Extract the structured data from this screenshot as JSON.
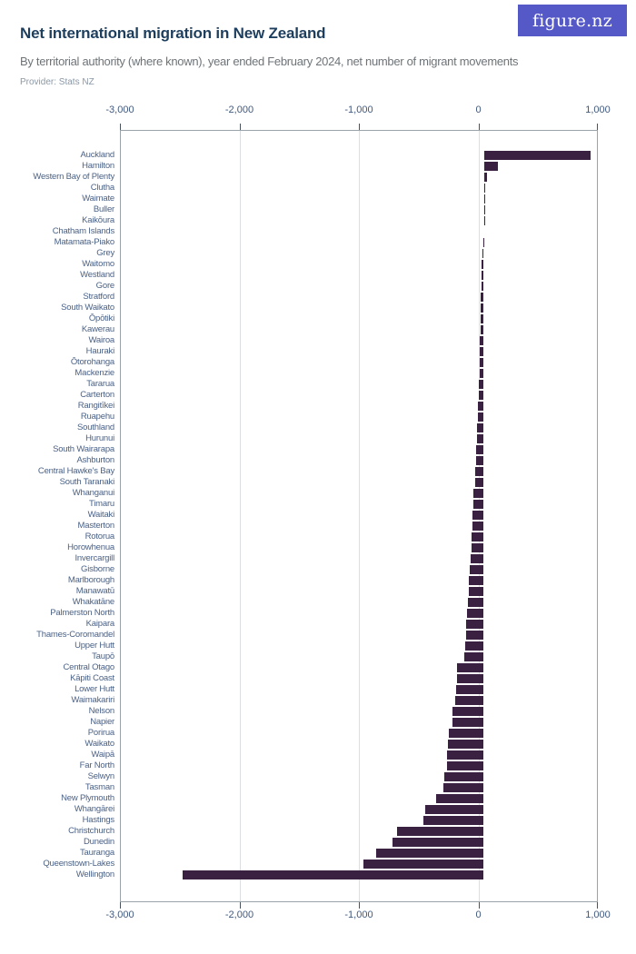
{
  "header": {
    "title": "Net international migration in New Zealand",
    "subtitle": "By territorial authority (where known), year ended February 2024,  net number of migrant movements",
    "provider": "Provider: Stats NZ",
    "logo_text": "figure.nz"
  },
  "colors": {
    "bar": "#3a2142",
    "logo_background": "#5559c8",
    "title_text": "#1e3e5e",
    "subtitle_text": "#6e7478",
    "category_label_text": "#4a6186",
    "axis_label_text": "#41597d",
    "gridline": "#dcdfe2",
    "frame": "#9aa2aa"
  },
  "chart_data": {
    "type": "bar",
    "orientation": "horizontal",
    "title": "Net international migration in New Zealand",
    "subtitle": "By territorial authority (where known), year ended February 2024, net number of migrant movements",
    "xlabel": "",
    "ylabel": "",
    "xlim": [
      -3000,
      1000
    ],
    "x_ticks": [
      -3000,
      -2000,
      -1000,
      0,
      1000
    ],
    "x_tick_labels": [
      "-3,000",
      "-2,000",
      "-1,000",
      "0",
      "1,000"
    ],
    "grid": true,
    "legend": false,
    "categories": [
      "Auckland",
      "Hamilton",
      "Western Bay of Plenty",
      "Clutha",
      "Waimate",
      "Buller",
      "Kaikōura",
      "Chatham Islands",
      "Matamata-Piako",
      "Grey",
      "Waitomo",
      "Westland",
      "Gore",
      "Stratford",
      "South Waikato",
      "Ōpōtiki",
      "Kawerau",
      "Wairoa",
      "Hauraki",
      "Ōtorohanga",
      "Mackenzie",
      "Tararua",
      "Carterton",
      "Rangitīkei",
      "Ruapehu",
      "Southland",
      "Hurunui",
      "South Wairarapa",
      "Ashburton",
      "Central Hawke's Bay",
      "South Taranaki",
      "Whanganui",
      "Timaru",
      "Waitaki",
      "Masterton",
      "Rotorua",
      "Horowhenua",
      "Invercargill",
      "Gisborne",
      "Marlborough",
      "Manawatū",
      "Whakatāne",
      "Palmerston North",
      "Kaipara",
      "Thames-Coromandel",
      "Upper Hutt",
      "Taupō",
      "Central Otago",
      "Kāpiti Coast",
      "Lower Hutt",
      "Waimakariri",
      "Nelson",
      "Napier",
      "Porirua",
      "Waikato",
      "Waipā",
      "Far North",
      "Selwyn",
      "Tasman",
      "New Plymouth",
      "Whangārei",
      "Hastings",
      "Christchurch",
      "Dunedin",
      "Tauranga",
      "Queenstown-Lakes",
      "Wellington"
    ],
    "values": [
      890,
      115,
      30,
      15,
      10,
      6,
      2,
      0,
      -4,
      -15,
      -18,
      -20,
      -22,
      -25,
      -27,
      -28,
      -29,
      -31,
      -33,
      -35,
      -38,
      -41,
      -45,
      -50,
      -53,
      -56,
      -59,
      -61,
      -64,
      -70,
      -72,
      -85,
      -90,
      -93,
      -95,
      -100,
      -105,
      -110,
      -116,
      -124,
      -128,
      -134,
      -143,
      -147,
      -150,
      -154,
      -163,
      -222,
      -227,
      -231,
      -238,
      -262,
      -265,
      -293,
      -298,
      -306,
      -311,
      -333,
      -341,
      -400,
      -493,
      -509,
      -727,
      -762,
      -903,
      -1011,
      -2524
    ]
  }
}
